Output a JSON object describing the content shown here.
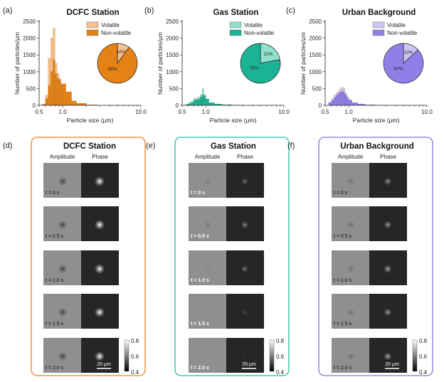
{
  "chart_data": [
    {
      "type": "bar",
      "panel_label": "(a)",
      "title": "DCFC Station",
      "xlabel": "Particle size (μm)",
      "ylabel": "Number of particles/μm",
      "x_scale": "log",
      "xlim": [
        0.5,
        10.0
      ],
      "ylim": [
        0,
        2500
      ],
      "yticks": [
        "0",
        "500",
        "1000",
        "1500",
        "2000",
        "2500"
      ],
      "xticks": [
        "0.5",
        "1.0",
        "10.0"
      ],
      "bins": [
        [
          0.55,
          0.6,
          30,
          40
        ],
        [
          0.6,
          0.65,
          200,
          300
        ],
        [
          0.65,
          0.7,
          600,
          1400
        ],
        [
          0.7,
          0.75,
          1000,
          2000
        ],
        [
          0.75,
          0.8,
          1350,
          2300
        ],
        [
          0.8,
          0.85,
          950,
          1250
        ],
        [
          0.85,
          0.9,
          800,
          950
        ],
        [
          0.9,
          0.95,
          760,
          800
        ],
        [
          0.95,
          1.0,
          620,
          640
        ],
        [
          1.0,
          1.1,
          640,
          640
        ],
        [
          1.1,
          1.3,
          400,
          400
        ],
        [
          1.3,
          1.5,
          130,
          130
        ],
        [
          1.5,
          2.0,
          60,
          60
        ],
        [
          2.0,
          2.8,
          15,
          15
        ]
      ],
      "bin_fields": [
        "x_min_um",
        "x_max_um",
        "non_volatile",
        "total"
      ],
      "series": [
        {
          "name": "Volatile",
          "color": "#f6c08f"
        },
        {
          "name": "Non-volatile",
          "color": "#e58216"
        }
      ],
      "pie": {
        "labels": [
          "Volatile",
          "Non-volatile"
        ],
        "values": [
          10,
          90
        ],
        "texts": [
          "10%",
          "90%"
        ]
      }
    },
    {
      "type": "bar",
      "panel_label": "(b)",
      "title": "Gas Station",
      "xlabel": "Particle size (μm)",
      "ylabel": "Number of particles/μm",
      "x_scale": "log",
      "xlim": [
        0.5,
        10.0
      ],
      "ylim": [
        0,
        2500
      ],
      "yticks": [
        "0",
        "500",
        "1000",
        "1500",
        "2000",
        "2500"
      ],
      "xticks": [
        "0.5",
        "1.0",
        "10.0"
      ],
      "bins": [
        [
          0.55,
          0.6,
          20,
          30
        ],
        [
          0.6,
          0.65,
          50,
          80
        ],
        [
          0.65,
          0.7,
          80,
          130
        ],
        [
          0.7,
          0.75,
          150,
          200
        ],
        [
          0.75,
          0.8,
          160,
          220
        ],
        [
          0.8,
          0.85,
          180,
          250
        ],
        [
          0.85,
          0.9,
          250,
          320
        ],
        [
          0.9,
          0.95,
          310,
          500
        ],
        [
          0.95,
          1.0,
          280,
          320
        ],
        [
          1.0,
          1.1,
          180,
          190
        ],
        [
          1.1,
          1.3,
          80,
          80
        ],
        [
          1.3,
          1.6,
          40,
          40
        ],
        [
          1.6,
          2.2,
          20,
          20
        ],
        [
          2.2,
          3.0,
          8,
          8
        ]
      ],
      "bin_fields": [
        "x_min_um",
        "x_max_um",
        "non_volatile",
        "total"
      ],
      "series": [
        {
          "name": "Volatile",
          "color": "#8fe0cc"
        },
        {
          "name": "Non-volatile",
          "color": "#1ab394"
        }
      ],
      "pie": {
        "labels": [
          "Volatile",
          "Non-volatile"
        ],
        "values": [
          22,
          78
        ],
        "texts": [
          "22%",
          "78%"
        ]
      }
    },
    {
      "type": "bar",
      "panel_label": "(c)",
      "title": "Urban Background",
      "xlabel": "Particle size (μm)",
      "ylabel": "Number of particles/μm",
      "x_scale": "log",
      "xlim": [
        0.5,
        10.0
      ],
      "ylim": [
        0,
        2500
      ],
      "yticks": [
        "0",
        "500",
        "1000",
        "1500",
        "2000",
        "2500"
      ],
      "xticks": [
        "0.5",
        "1.0",
        "10.0"
      ],
      "bins": [
        [
          0.55,
          0.6,
          70,
          100
        ],
        [
          0.6,
          0.65,
          150,
          200
        ],
        [
          0.65,
          0.7,
          250,
          320
        ],
        [
          0.7,
          0.75,
          320,
          400
        ],
        [
          0.75,
          0.8,
          380,
          480
        ],
        [
          0.8,
          0.85,
          420,
          540
        ],
        [
          0.85,
          0.9,
          380,
          500
        ],
        [
          0.9,
          0.95,
          300,
          350
        ],
        [
          0.95,
          1.0,
          220,
          240
        ],
        [
          1.0,
          1.1,
          160,
          160
        ],
        [
          1.1,
          1.3,
          80,
          80
        ],
        [
          1.3,
          1.6,
          40,
          40
        ],
        [
          1.6,
          2.2,
          15,
          15
        ],
        [
          2.2,
          3.0,
          5,
          5
        ]
      ],
      "bin_fields": [
        "x_min_um",
        "x_max_um",
        "non_volatile",
        "total"
      ],
      "series": [
        {
          "name": "Volatile",
          "color": "#cdc6f4"
        },
        {
          "name": "Non-volatile",
          "color": "#8f7fe6"
        }
      ],
      "pie": {
        "labels": [
          "Volatile",
          "Non-volatile"
        ],
        "values": [
          13,
          87
        ],
        "texts": [
          "13%",
          "87%"
        ]
      }
    }
  ],
  "image_panels": [
    {
      "panel_label": "(d)",
      "title": "DCFC Station",
      "frame_color": "#ef9a45",
      "columns": [
        "Amplitude",
        "Phase"
      ],
      "rows": [
        {
          "time": "t = 0 s",
          "amp_spot": 0.75,
          "phase_spot": 1.0
        },
        {
          "time": "t = 0.5 s",
          "amp_spot": 0.75,
          "phase_spot": 1.0
        },
        {
          "time": "t = 1.0 s",
          "amp_spot": 0.75,
          "phase_spot": 1.0
        },
        {
          "time": "t = 1.5 s",
          "amp_spot": 0.75,
          "phase_spot": 1.0
        },
        {
          "time": "t = 2.0 s",
          "amp_spot": 0.75,
          "phase_spot": 1.0
        }
      ],
      "scale_bar": "20 μm",
      "colorbar": [
        "0.8",
        "0.6",
        "0.4"
      ]
    },
    {
      "panel_label": "(e)",
      "title": "Gas Station",
      "frame_color": "#4ac9b0",
      "columns": [
        "Amplitude",
        "Phase"
      ],
      "rows": [
        {
          "time": "t = 0 s",
          "amp_spot": 0.15,
          "phase_spot": 0.35
        },
        {
          "time": "t = 0.5 s",
          "amp_spot": 0.25,
          "phase_spot": 0.45
        },
        {
          "time": "t = 1.0 s",
          "amp_spot": 0.1,
          "phase_spot": 0.4
        },
        {
          "time": "t = 1.5 s",
          "amp_spot": 0.05,
          "phase_spot": 0.15
        },
        {
          "time": "t = 2.0 s",
          "amp_spot": 0.02,
          "phase_spot": 0.05
        }
      ],
      "scale_bar": "20 μm",
      "colorbar": [
        "0.8",
        "0.6",
        "0.4"
      ]
    },
    {
      "panel_label": "(f)",
      "title": "Urban Background",
      "frame_color": "#9a8de0",
      "columns": [
        "Amplitude",
        "Phase"
      ],
      "rows": [
        {
          "time": "t = 0 s",
          "amp_spot": 0.3,
          "phase_spot": 0.5
        },
        {
          "time": "t = 0.5 s",
          "amp_spot": 0.35,
          "phase_spot": 0.55
        },
        {
          "time": "t = 1.0 s",
          "amp_spot": 0.35,
          "phase_spot": 0.6
        },
        {
          "time": "t = 1.5 s",
          "amp_spot": 0.3,
          "phase_spot": 0.55
        },
        {
          "time": "t = 2.0 s",
          "amp_spot": 0.35,
          "phase_spot": 0.6
        }
      ],
      "scale_bar": "20 μm",
      "colorbar": [
        "0.8",
        "0.6",
        "0.4"
      ]
    }
  ]
}
